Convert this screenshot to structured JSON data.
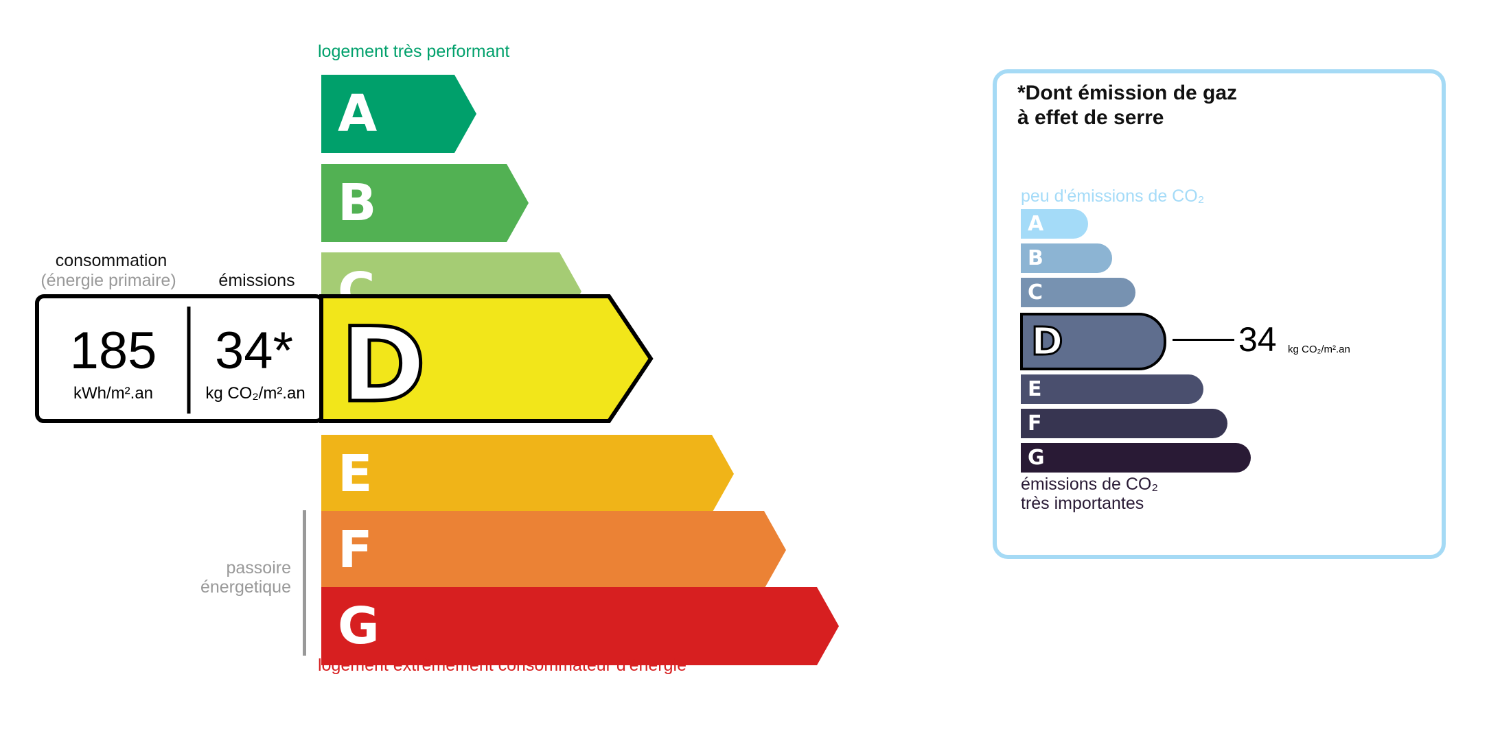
{
  "energy": {
    "top_label": "logement très performant",
    "bottom_label": "logement extrêmement consommateur d'énergie",
    "passoire_label_1": "passoire",
    "passoire_label_2": "énergetique",
    "consumption_label": "consommation",
    "consumption_sublabel": "(énergie primaire)",
    "emissions_label": "émissions",
    "consumption_value": "185",
    "consumption_unit": "kWh/m².an",
    "emissions_value": "34*",
    "emissions_unit": "kg CO₂/m².an",
    "current_class": "D",
    "classes": [
      {
        "letter": "A",
        "color": "#00a06b"
      },
      {
        "letter": "B",
        "color": "#52b153"
      },
      {
        "letter": "C",
        "color": "#a5cc74"
      },
      {
        "letter": "D",
        "color": "#f2e61a"
      },
      {
        "letter": "E",
        "color": "#f0b418"
      },
      {
        "letter": "F",
        "color": "#eb8235"
      },
      {
        "letter": "G",
        "color": "#d71f20"
      }
    ],
    "top_label_color": "#00a06b",
    "bottom_label_color": "#d71f20"
  },
  "ges": {
    "title_line1": "*Dont émission de gaz",
    "title_line2": "à effet de serre",
    "top_label": "peu d'émissions de CO₂",
    "bottom_label_1": "émissions de CO₂",
    "bottom_label_2": "très importantes",
    "value": "34",
    "unit": "kg CO₂/m².an",
    "current_class": "D",
    "border_color": "#a5daf5",
    "classes": [
      {
        "letter": "A",
        "color": "#a4dbf8"
      },
      {
        "letter": "B",
        "color": "#8cb4d3"
      },
      {
        "letter": "C",
        "color": "#7792b1"
      },
      {
        "letter": "D",
        "color": "#5f6e8e"
      },
      {
        "letter": "E",
        "color": "#4a4f6e"
      },
      {
        "letter": "F",
        "color": "#373551"
      },
      {
        "letter": "G",
        "color": "#291a35"
      }
    ]
  }
}
